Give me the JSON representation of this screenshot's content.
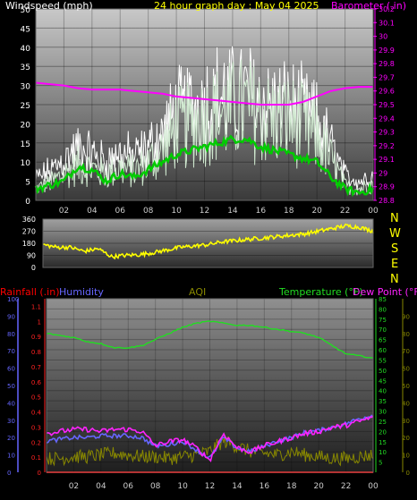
{
  "header": {
    "windspeed_label": "Windspeed (mph)",
    "title": "24 hour graph day : May 04 2025",
    "barometer_label": "Barometer (.in)"
  },
  "bottom_header": {
    "rainfall_label": "Rainfall (.in)",
    "humidity_label": "Humidity",
    "aqi_label": "AQI",
    "temperature_label": "Temperature (°F)",
    "dewpoint_label": "Dew Point (°F)"
  },
  "compass": [
    "N",
    "W",
    "S",
    "E",
    "N"
  ],
  "colors": {
    "windspeed": "#ffffff",
    "wind_avg": "#00cc00",
    "barometer": "#ff00ff",
    "direction": "#ffff00",
    "temperature": "#22dd22",
    "dewpoint": "#ff22ff",
    "humidity": "#6666ff",
    "rainfall": "#ff0000",
    "aqi": "#888800"
  },
  "chart_data": [
    {
      "type": "line",
      "name": "wind-and-barometer",
      "x_ticks": [
        "02",
        "04",
        "06",
        "08",
        "10",
        "12",
        "14",
        "16",
        "18",
        "20",
        "22",
        "00"
      ],
      "y_left_ticks": [
        "0",
        "5",
        "10",
        "15",
        "20",
        "25",
        "30",
        "35",
        "40",
        "45",
        "50"
      ],
      "y_left_range": [
        0,
        50
      ],
      "y_right_ticks": [
        "28.8",
        "28.9",
        "29",
        "29.1",
        "29.2",
        "29.3",
        "29.4",
        "29.5",
        "29.6",
        "29.7",
        "29.8",
        "29.9",
        "30",
        "30.1",
        "30.2"
      ],
      "y_right_range": [
        28.8,
        30.2
      ],
      "x_range_hours": [
        0,
        24
      ],
      "series": [
        {
          "name": "Windspeed",
          "values_hourly": [
            4,
            6,
            9,
            12,
            11,
            9,
            11,
            10,
            13,
            17,
            25,
            26,
            28,
            30,
            31,
            32,
            29,
            28,
            28,
            26,
            22,
            14,
            5,
            4,
            6
          ]
        },
        {
          "name": "Wind gust",
          "values_hourly": [
            8,
            11,
            15,
            19,
            17,
            14,
            17,
            16,
            19,
            24,
            31,
            33,
            35,
            37,
            36,
            37,
            35,
            33,
            33,
            31,
            28,
            20,
            9,
            7,
            9
          ]
        },
        {
          "name": "Average wind",
          "values_hourly": [
            3,
            4,
            5,
            9,
            8,
            5,
            7,
            6,
            8,
            10,
            12,
            13,
            14,
            15,
            16,
            16,
            14,
            13,
            12,
            11,
            10,
            6,
            3,
            2,
            3
          ]
        },
        {
          "name": "Barometer",
          "values_hourly": [
            29.66,
            29.65,
            29.64,
            29.62,
            29.61,
            29.61,
            29.61,
            29.6,
            29.59,
            29.58,
            29.56,
            29.55,
            29.54,
            29.53,
            29.52,
            29.51,
            29.5,
            29.5,
            29.5,
            29.52,
            29.56,
            29.6,
            29.62,
            29.63,
            29.63
          ]
        }
      ]
    },
    {
      "type": "line",
      "name": "wind-direction",
      "y_ticks": [
        "0",
        "90",
        "180",
        "270",
        "360"
      ],
      "y_range": [
        0,
        360
      ],
      "x_range_hours": [
        0,
        24
      ],
      "series": [
        {
          "name": "Direction",
          "values_hourly": [
            170,
            150,
            150,
            120,
            140,
            80,
            90,
            95,
            110,
            130,
            150,
            160,
            170,
            190,
            200,
            210,
            220,
            230,
            240,
            250,
            270,
            290,
            310,
            300,
            270
          ]
        }
      ]
    },
    {
      "type": "line",
      "name": "temperature-humidity-rain",
      "x_ticks": [
        "02",
        "04",
        "06",
        "08",
        "10",
        "12",
        "14",
        "16",
        "18",
        "20",
        "22",
        "00"
      ],
      "humidity_ticks": [
        "0",
        "10",
        "20",
        "30",
        "40",
        "50",
        "60",
        "70",
        "80",
        "90",
        "100"
      ],
      "humidity_range": [
        0,
        100
      ],
      "rain_ticks": [
        "0",
        "0.1",
        "0.2",
        "0.3",
        "0.4",
        "0.5",
        "0.6",
        "0.7",
        "0.8",
        "0.9",
        "1",
        "1.1"
      ],
      "rain_range": [
        0,
        1.15
      ],
      "temp_ticks": [
        "5",
        "10",
        "15",
        "20",
        "25",
        "30",
        "35",
        "40",
        "45",
        "50",
        "55",
        "60",
        "65",
        "70",
        "75",
        "80",
        "85"
      ],
      "temp_range": [
        0,
        85
      ],
      "aqi_ticks": [
        "0",
        "10",
        "20",
        "30",
        "40",
        "50",
        "60",
        "70",
        "80",
        "90"
      ],
      "aqi_range": [
        0,
        100
      ],
      "x_range_hours": [
        0,
        24
      ],
      "series": [
        {
          "name": "Temperature",
          "values_hourly": [
            68,
            67,
            66,
            64,
            63,
            61,
            61,
            62,
            65,
            68,
            71,
            73,
            74,
            73,
            72,
            72,
            71,
            70,
            69,
            68,
            66,
            62,
            58,
            57,
            56
          ]
        },
        {
          "name": "Dew Point",
          "values_hourly": [
            19,
            20,
            21,
            21,
            20,
            21,
            21,
            20,
            13,
            15,
            16,
            12,
            6,
            19,
            12,
            10,
            13,
            15,
            17,
            19,
            20,
            22,
            23,
            25,
            27
          ]
        },
        {
          "name": "Humidity",
          "values_hourly": [
            18,
            19,
            20,
            20,
            21,
            21,
            21,
            20,
            15,
            16,
            18,
            13,
            8,
            20,
            14,
            12,
            15,
            18,
            20,
            23,
            24,
            26,
            28,
            31,
            33
          ]
        },
        {
          "name": "AQI",
          "values_hourly": [
            8,
            8,
            9,
            9,
            10,
            11,
            10,
            9,
            9,
            8,
            9,
            10,
            12,
            18,
            15,
            12,
            11,
            10,
            12,
            10,
            9,
            8,
            8,
            9,
            10
          ]
        },
        {
          "name": "Rainfall",
          "values_hourly": [
            0,
            0,
            0,
            0,
            0,
            0,
            0,
            0,
            0,
            0,
            0,
            0,
            0,
            0,
            0,
            0,
            0,
            0,
            0,
            0,
            0,
            0,
            0,
            0,
            0
          ]
        }
      ]
    }
  ]
}
